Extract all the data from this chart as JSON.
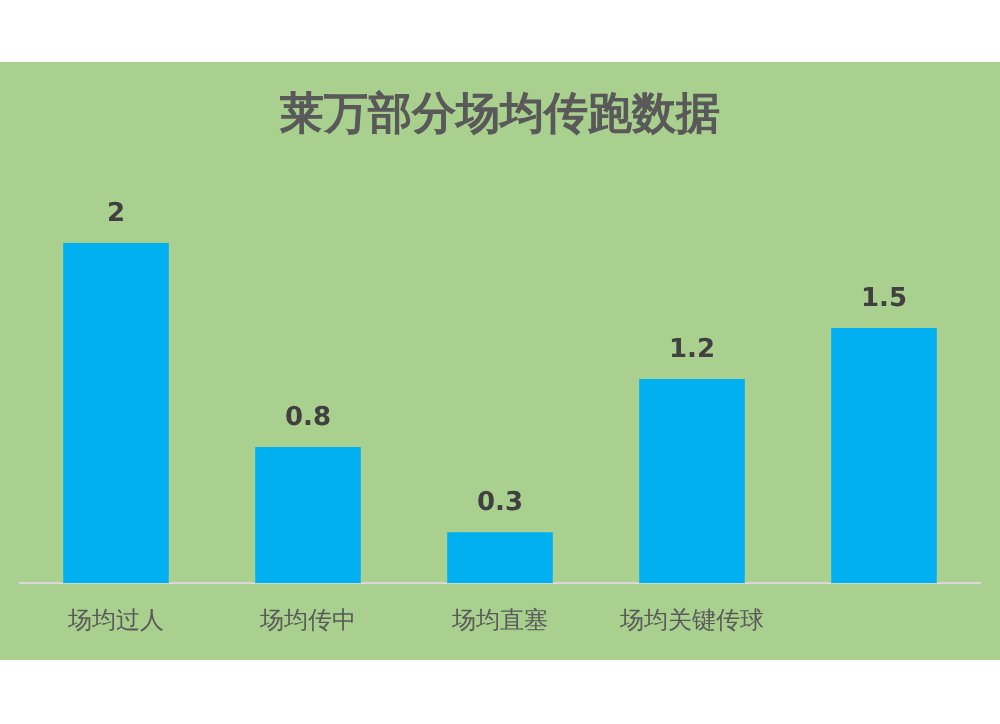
{
  "chart_data": {
    "type": "bar",
    "title": "莱万部分场均传跑数据",
    "categories": [
      "场均过人",
      "场均传中",
      "场均直塞",
      "场均关键传球",
      null
    ],
    "values": [
      2,
      0.8,
      0.3,
      1.2,
      1.5
    ],
    "color": "#00b0f0",
    "data_labels": true,
    "grid": false,
    "legend": false
  }
}
